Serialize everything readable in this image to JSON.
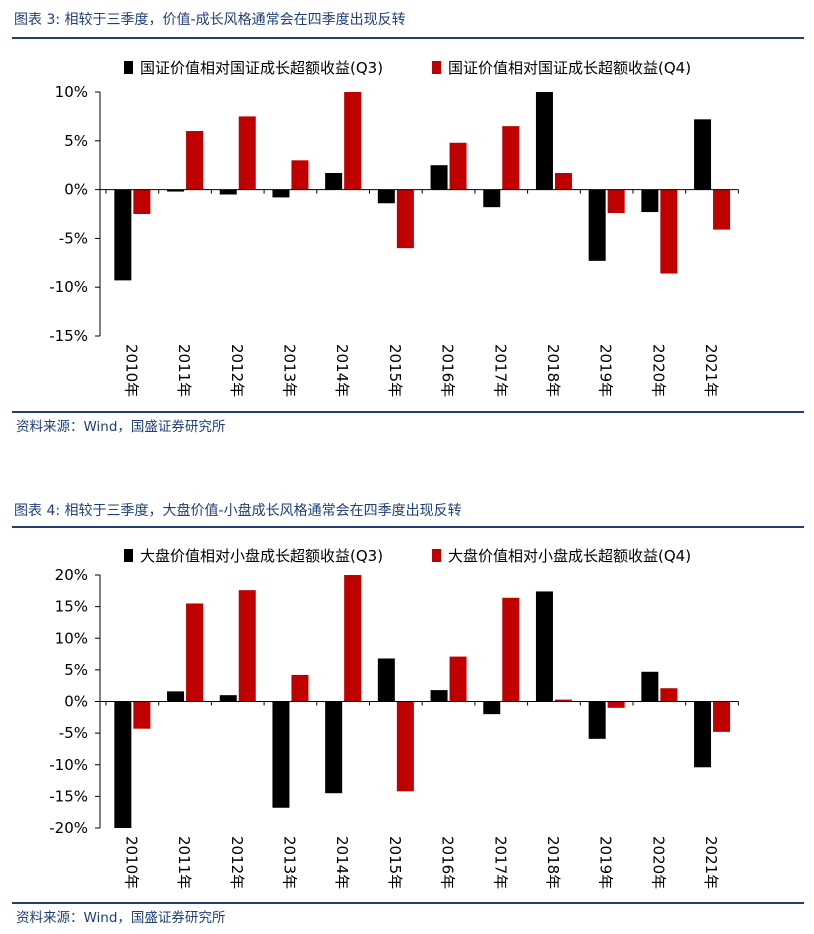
{
  "figures": [
    {
      "title": "图表 3:  相较于三季度，价值-成长风格通常会在四季度出现反转",
      "source": "资料来源：Wind，国盛证券研究所"
    },
    {
      "title": "图表 4:  相较于三季度，大盘价值-小盘成长风格通常会在四季度出现反转",
      "source": "资料来源：Wind，国盛证券研究所"
    }
  ],
  "colors": {
    "q3": "#000000",
    "q4": "#c00000",
    "brand_blue": "#1f3f7a"
  },
  "chart_data": [
    {
      "type": "bar",
      "title": "",
      "categories": [
        "2010年",
        "2011年",
        "2012年",
        "2013年",
        "2014年",
        "2015年",
        "2016年",
        "2017年",
        "2018年",
        "2019年",
        "2020年",
        "2021年"
      ],
      "series": [
        {
          "name": "国证价值相对国证成长超额收益(Q3)",
          "values": [
            -9.3,
            -0.2,
            -0.5,
            -0.8,
            1.7,
            -1.4,
            2.5,
            -1.8,
            10.0,
            -7.3,
            -2.3,
            7.2
          ]
        },
        {
          "name": "国证价值相对国证成长超额收益(Q4)",
          "values": [
            -2.5,
            6.0,
            7.5,
            3.0,
            10.0,
            -6.0,
            4.8,
            6.5,
            1.7,
            -2.4,
            -8.6,
            -4.1
          ]
        }
      ],
      "ylim": [
        -15,
        10
      ],
      "yticks": [
        10,
        5,
        0,
        -5,
        -10,
        -15
      ],
      "ytick_labels": [
        "10%",
        "5%",
        "0%",
        "-5%",
        "-10%",
        "-15%"
      ],
      "xlabel": "",
      "ylabel": "",
      "legend": "top"
    },
    {
      "type": "bar",
      "title": "",
      "categories": [
        "2010年",
        "2011年",
        "2012年",
        "2013年",
        "2014年",
        "2015年",
        "2016年",
        "2017年",
        "2018年",
        "2019年",
        "2020年",
        "2021年"
      ],
      "series": [
        {
          "name": "大盘价值相对小盘成长超额收益(Q3)",
          "values": [
            -20.5,
            1.6,
            1.0,
            -16.8,
            -14.5,
            6.8,
            1.8,
            -2.0,
            17.4,
            -5.9,
            4.7,
            -10.4
          ]
        },
        {
          "name": "大盘价值相对小盘成长超额收益(Q4)",
          "values": [
            -4.3,
            15.5,
            17.6,
            4.2,
            20.0,
            -14.2,
            7.1,
            16.4,
            0.3,
            -1.0,
            2.1,
            -4.8
          ]
        }
      ],
      "ylim": [
        -20,
        20
      ],
      "yticks": [
        20,
        15,
        10,
        5,
        0,
        -5,
        -10,
        -15,
        -20
      ],
      "ytick_labels": [
        "20%",
        "15%",
        "10%",
        "5%",
        "0%",
        "-5%",
        "-10%",
        "-15%",
        "-20%"
      ],
      "xlabel": "",
      "ylabel": "",
      "legend": "top"
    }
  ]
}
